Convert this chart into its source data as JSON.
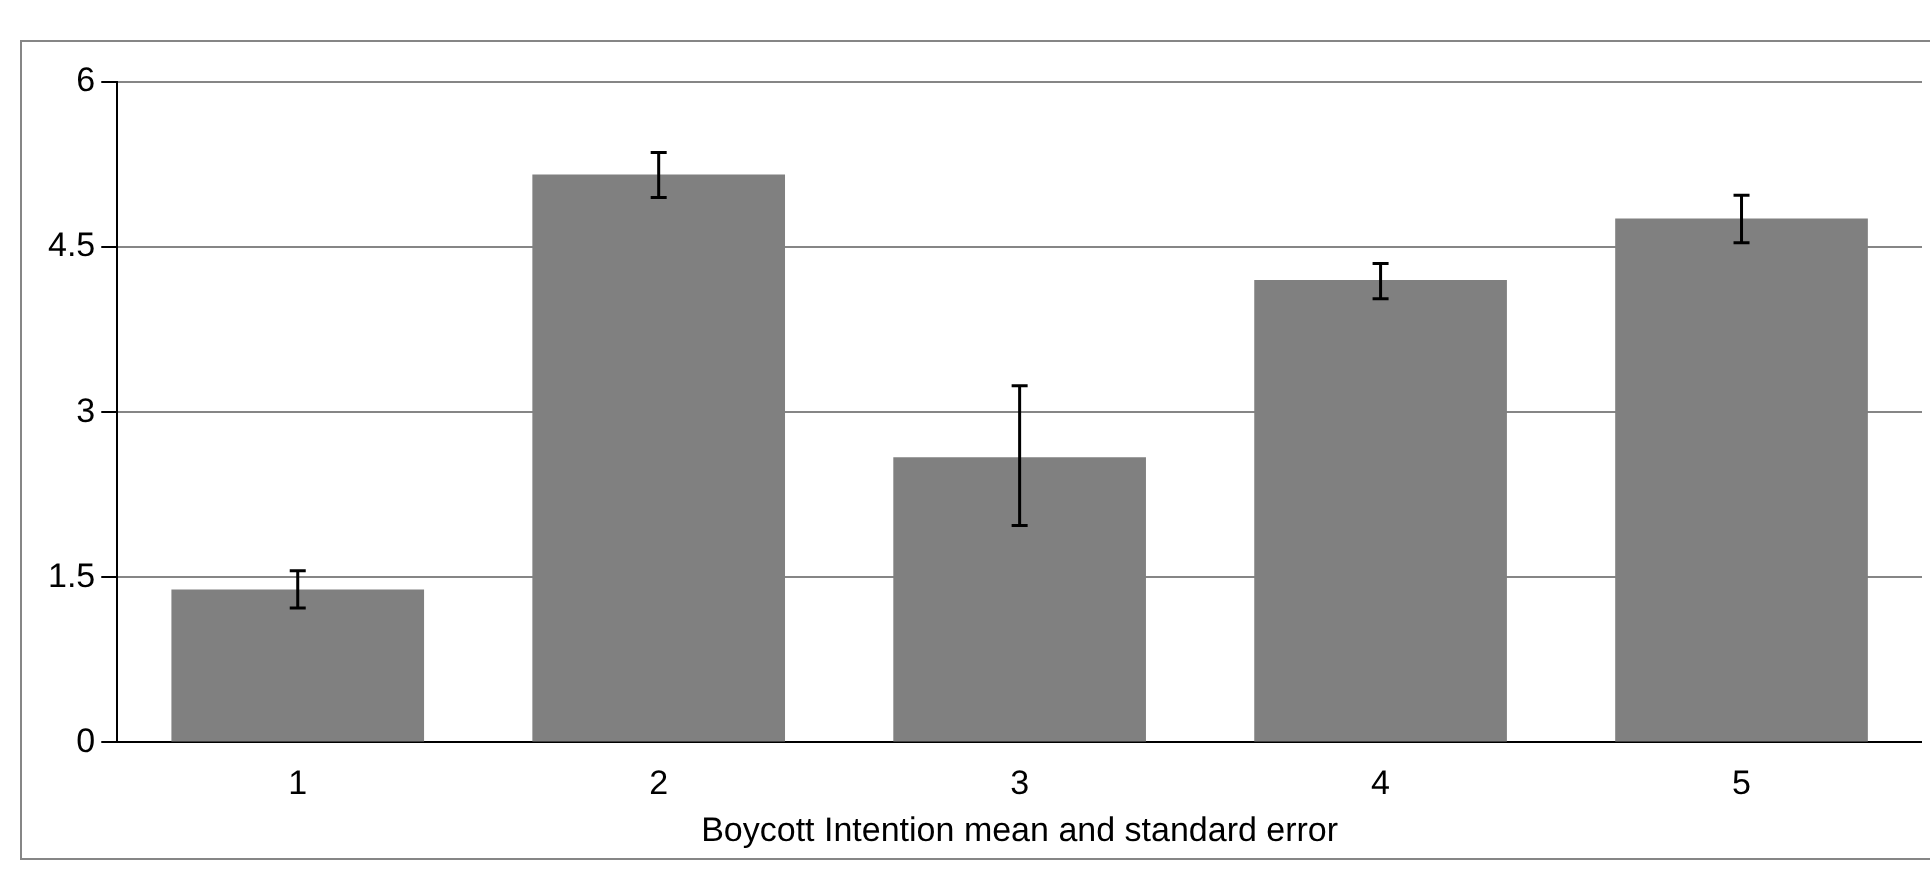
{
  "chart_data": {
    "type": "bar",
    "xlabel": "Boycott Intention mean and standard error",
    "categories": [
      "1",
      "2",
      "3",
      "4",
      "5"
    ],
    "values": [
      1.39,
      5.16,
      2.59,
      4.2,
      4.76
    ],
    "errors": [
      [
        1.22,
        1.56
      ],
      [
        4.95,
        5.36
      ],
      [
        1.97,
        3.24
      ],
      [
        4.03,
        4.35
      ],
      [
        4.54,
        4.97
      ]
    ],
    "color": "#808080",
    "ylim": [
      0,
      6
    ],
    "yticks": [
      0,
      1.5,
      3,
      4.5,
      6
    ],
    "grid": "y",
    "legend": false
  }
}
